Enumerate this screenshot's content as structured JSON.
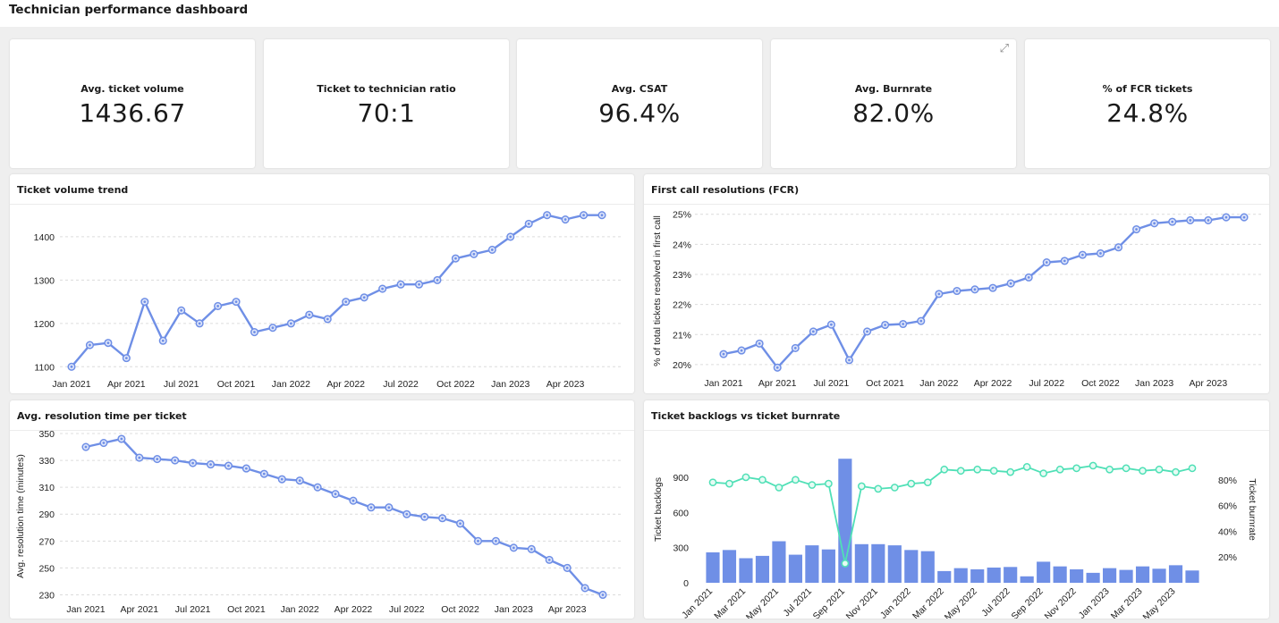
{
  "page": {
    "title": "Technician performance dashboard"
  },
  "kpis": [
    {
      "label": "Avg. ticket volume",
      "value": "1436.67"
    },
    {
      "label": "Ticket to technician ratio",
      "value": "70:1"
    },
    {
      "label": "Avg. CSAT",
      "value": "96.4%"
    },
    {
      "label": "Avg. Burnrate",
      "value": "82.0%",
      "icon": "expand-icon"
    },
    {
      "label": "% of FCR tickets",
      "value": "24.8%"
    }
  ],
  "panels": {
    "volume": {
      "title": "Ticket volume trend"
    },
    "fcr": {
      "title": "First call resolutions (FCR)"
    },
    "resolution": {
      "title": "Avg. resolution time per ticket"
    },
    "backlog": {
      "title": "Ticket backlogs vs ticket burnrate"
    }
  },
  "colors": {
    "line": "#6f8fe6",
    "bar": "#6f8fe6",
    "burn": "#4fe0b6"
  },
  "chart_data": [
    {
      "id": "volume",
      "type": "line",
      "title": "Ticket volume trend",
      "ylabel": "",
      "ylim": [
        1080,
        1470
      ],
      "yticks": [
        1100,
        1200,
        1300,
        1400
      ],
      "ytick_labels": [
        "1100",
        "1200",
        "1300",
        "1400"
      ],
      "xticks": [
        {
          "i": 0,
          "label": "Jan 2021"
        },
        {
          "i": 3,
          "label": "Apr 2021"
        },
        {
          "i": 6,
          "label": "Jul 2021"
        },
        {
          "i": 9,
          "label": "Oct 2021"
        },
        {
          "i": 12,
          "label": "Jan 2022"
        },
        {
          "i": 15,
          "label": "Apr 2022"
        },
        {
          "i": 18,
          "label": "Jul 2022"
        },
        {
          "i": 21,
          "label": "Oct 2022"
        },
        {
          "i": 24,
          "label": "Jan 2023"
        },
        {
          "i": 27,
          "label": "Apr 2023"
        }
      ],
      "grid": true,
      "values": [
        1100,
        1150,
        1155,
        1120,
        1250,
        1160,
        1230,
        1200,
        1240,
        1250,
        1180,
        1190,
        1200,
        1220,
        1210,
        1250,
        1260,
        1280,
        1290,
        1290,
        1300,
        1350,
        1360,
        1370,
        1400,
        1430,
        1450,
        1440,
        1450,
        1450
      ]
    },
    {
      "id": "fcr",
      "type": "line",
      "title": "First call resolutions (FCR)",
      "ylabel": "% of total tickets resolved in first call",
      "ylim": [
        19.7,
        25.2
      ],
      "yticks": [
        20,
        21,
        22,
        23,
        24,
        25
      ],
      "ytick_labels": [
        "20%",
        "21%",
        "22%",
        "23%",
        "24%",
        "25%"
      ],
      "xticks": [
        {
          "i": 0,
          "label": "Jan 2021"
        },
        {
          "i": 3,
          "label": "Apr 2021"
        },
        {
          "i": 6,
          "label": "Jul 2021"
        },
        {
          "i": 9,
          "label": "Oct 2021"
        },
        {
          "i": 12,
          "label": "Jan 2022"
        },
        {
          "i": 15,
          "label": "Apr 2022"
        },
        {
          "i": 18,
          "label": "Jul 2022"
        },
        {
          "i": 21,
          "label": "Oct 2022"
        },
        {
          "i": 24,
          "label": "Jan 2023"
        },
        {
          "i": 27,
          "label": "Apr 2023"
        }
      ],
      "grid": true,
      "values": [
        20.35,
        20.47,
        20.7,
        19.9,
        20.55,
        21.1,
        21.33,
        20.15,
        21.1,
        21.32,
        21.35,
        21.45,
        22.35,
        22.45,
        22.5,
        22.55,
        22.7,
        22.9,
        23.4,
        23.45,
        23.65,
        23.7,
        23.9,
        24.5,
        24.7,
        24.75,
        24.8,
        24.8,
        24.9,
        24.9
      ]
    },
    {
      "id": "resolution",
      "type": "line",
      "title": "Avg. resolution time per ticket",
      "ylabel": "Avg. resolution time (minutes)",
      "ylim": [
        225,
        352
      ],
      "yticks": [
        230,
        250,
        270,
        290,
        310,
        330,
        350
      ],
      "ytick_labels": [
        "230",
        "250",
        "270",
        "290",
        "310",
        "330",
        "350"
      ],
      "xticks": [
        {
          "i": 0,
          "label": "Jan 2021"
        },
        {
          "i": 3,
          "label": "Apr 2021"
        },
        {
          "i": 6,
          "label": "Jul 2021"
        },
        {
          "i": 9,
          "label": "Oct 2021"
        },
        {
          "i": 12,
          "label": "Jan 2022"
        },
        {
          "i": 15,
          "label": "Apr 2022"
        },
        {
          "i": 18,
          "label": "Jul 2022"
        },
        {
          "i": 21,
          "label": "Oct 2022"
        },
        {
          "i": 24,
          "label": "Jan 2023"
        },
        {
          "i": 27,
          "label": "Apr 2023"
        }
      ],
      "grid": true,
      "values": [
        340,
        343,
        346,
        332,
        331,
        330,
        328,
        327,
        326,
        324,
        320,
        316,
        315,
        310,
        305,
        300,
        295,
        295,
        290,
        288,
        287,
        283,
        270,
        270,
        265,
        264,
        256,
        250,
        235,
        230
      ]
    },
    {
      "id": "backlog",
      "type": "bar+line",
      "title": "Ticket backlogs vs ticket burnrate",
      "ylabel": "Ticket backlogs",
      "y2label": "Ticket burnrate",
      "ylim": [
        0,
        1100
      ],
      "yticks": [
        0,
        300,
        600,
        900
      ],
      "ytick_labels": [
        "0",
        "300",
        "600",
        "900"
      ],
      "y2lim": [
        0,
        100
      ],
      "y2ticks": [
        20,
        40,
        60,
        80
      ],
      "y2tick_labels": [
        "20%",
        "40%",
        "60%",
        "80%"
      ],
      "categories": [
        "Jan 2021",
        "Feb 2021",
        "Mar 2021",
        "Apr 2021",
        "May 2021",
        "Jun 2021",
        "Jul 2021",
        "Aug 2021",
        "Sep 2021",
        "Oct 2021",
        "Nov 2021",
        "Dec 2021",
        "Jan 2022",
        "Feb 2022",
        "Mar 2022",
        "Apr 2022",
        "May 2022",
        "Jun 2022",
        "Jul 2022",
        "Aug 2022",
        "Sep 2022",
        "Oct 2022",
        "Nov 2022",
        "Dec 2022",
        "Jan 2023",
        "Feb 2023",
        "Mar 2023",
        "Apr 2023",
        "May 2023",
        "Jun 2023"
      ],
      "xtick_labels": [
        {
          "i": 0,
          "label": "Jan 2021"
        },
        {
          "i": 2,
          "label": "Mar 2021"
        },
        {
          "i": 4,
          "label": "May 2021"
        },
        {
          "i": 6,
          "label": "Jul 2021"
        },
        {
          "i": 8,
          "label": "Sep 2021"
        },
        {
          "i": 10,
          "label": "Nov 2021"
        },
        {
          "i": 12,
          "label": "Jan 2022"
        },
        {
          "i": 14,
          "label": "Mar 2022"
        },
        {
          "i": 16,
          "label": "May 2022"
        },
        {
          "i": 18,
          "label": "Jul 2022"
        },
        {
          "i": 20,
          "label": "Sep 2022"
        },
        {
          "i": 22,
          "label": "Nov 2022"
        },
        {
          "i": 24,
          "label": "Jan 2023"
        },
        {
          "i": 26,
          "label": "Mar 2023"
        },
        {
          "i": 28,
          "label": "May 2023"
        }
      ],
      "grid": false,
      "series": [
        {
          "name": "Ticket backlogs",
          "type": "bar",
          "axis": "left",
          "values": [
            260,
            280,
            210,
            230,
            355,
            240,
            320,
            285,
            1060,
            330,
            330,
            320,
            280,
            270,
            100,
            125,
            115,
            130,
            135,
            55,
            180,
            140,
            115,
            85,
            125,
            110,
            140,
            120,
            150,
            105
          ]
        },
        {
          "name": "Ticket burnrate",
          "type": "line",
          "axis": "right",
          "values": [
            78,
            77,
            82,
            80,
            74,
            80,
            76,
            77,
            15,
            75,
            73,
            74,
            77,
            78,
            88,
            87,
            88,
            87,
            86,
            90,
            85,
            88,
            89,
            91,
            88,
            89,
            87,
            88,
            86,
            89
          ]
        }
      ]
    }
  ]
}
